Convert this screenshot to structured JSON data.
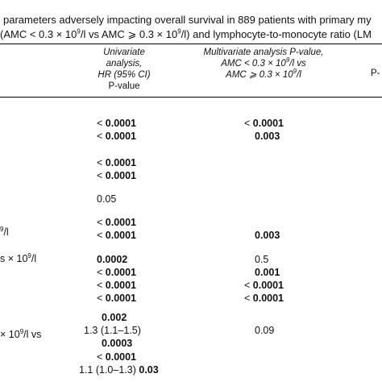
{
  "caption": {
    "line1": "parameters adversely impacting overall survival in 889 patients with primary my",
    "line2": "(AMC < 0.3 × 10",
    "line2_sup": "9",
    "line2_rest": "/l vs AMC ⩾ 0.3 × 10",
    "line2_sup2": "9",
    "line2_end": "/l) and lymphocyte-to-monocyte ratio (LM"
  },
  "header": {
    "univariate": {
      "l1": "Univariate",
      "l2": "analysis,",
      "l3": "HR (95% CI)",
      "l4": "P-value"
    },
    "multivariate": {
      "l1": "Multivariate analysis P-value,",
      "l2": "AMC < 0.3 × 10",
      "l2_sup": "9",
      "l2_rest": "/l vs",
      "l3": "AMC ⩾ 0.3 × 10",
      "l3_sup": "9",
      "l3_rest": "/l"
    },
    "third_partial": "P-"
  },
  "left_fragments": {
    "r1": "9",
    "r1_rest": "/l",
    "r2": "s × 10",
    "r2_sup": "9",
    "r2_rest": "/l",
    "r3": "× 10",
    "r3_sup": "9",
    "r3_rest": "/l vs"
  },
  "rows": [
    {
      "uni_prefix": "< ",
      "uni": "0.0001",
      "multi_prefix": "< ",
      "multi": "0.0001"
    },
    {
      "uni_prefix": "< ",
      "uni": "0.0001",
      "multi_prefix": "",
      "multi": "0.003"
    },
    {
      "uni_prefix": "< ",
      "uni": "0.0001",
      "multi_prefix": "",
      "multi": ""
    },
    {
      "uni_prefix": "< ",
      "uni": "0.0001",
      "multi_prefix": "",
      "multi": ""
    },
    {
      "uni_prefix": "",
      "uni_plain": "0.05",
      "multi_prefix": "",
      "multi": ""
    },
    {
      "uni_prefix": "< ",
      "uni": "0.0001",
      "multi_prefix": "",
      "multi": ""
    },
    {
      "uni_prefix": "< ",
      "uni": "0.0001",
      "multi_prefix": "",
      "multi": "0.003"
    },
    {
      "uni_prefix": "",
      "uni": "0.0002",
      "multi_prefix": "",
      "multi_plain": "0.5"
    },
    {
      "uni_prefix": "< ",
      "uni": "0.0001",
      "multi_prefix": "",
      "multi": "0.001"
    },
    {
      "uni_prefix": "< ",
      "uni": "0.0001",
      "multi_prefix": "< ",
      "multi": "0.0001"
    },
    {
      "uni_prefix": "< ",
      "uni": "0.0001",
      "multi_prefix": "< ",
      "multi": "0.0001"
    },
    {
      "uni_prefix": "",
      "uni": "0.002",
      "multi_prefix": "",
      "multi": ""
    },
    {
      "uni_prefix": "",
      "uni_plain": "1.3 (1.1–1.5)",
      "multi_prefix": "",
      "multi_plain": "0.09"
    },
    {
      "uni_prefix": "",
      "uni": "0.0003",
      "multi_prefix": "",
      "multi": ""
    },
    {
      "uni_prefix": "< ",
      "uni": "0.0001",
      "multi_prefix": "",
      "multi": ""
    },
    {
      "uni_prefix": "",
      "uni_plain": "1.1 (1.0–1.3)",
      "uni_bold_after": "0.03",
      "multi_prefix": "",
      "multi": ""
    }
  ]
}
